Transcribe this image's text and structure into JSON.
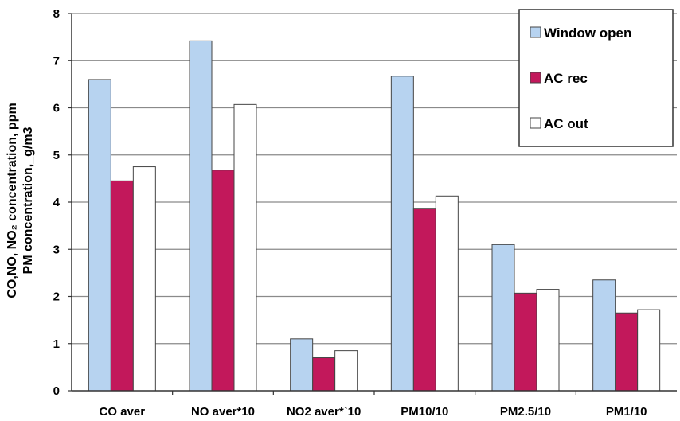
{
  "chart_data": {
    "type": "bar",
    "categories": [
      "CO aver",
      "NO aver*10",
      "NO2 aver*`10",
      "PM10/10",
      "PM2.5/10",
      "PM1/10"
    ],
    "series": [
      {
        "name": "Window open",
        "color": "#b7d3f0",
        "values": [
          6.6,
          7.42,
          1.1,
          6.67,
          3.1,
          2.35
        ]
      },
      {
        "name": "AC rec",
        "color": "#c2185b",
        "values": [
          4.45,
          4.68,
          0.7,
          3.87,
          2.07,
          1.65
        ]
      },
      {
        "name": "AC out",
        "color": "#ffffff",
        "values": [
          4.75,
          6.07,
          0.85,
          4.13,
          2.15,
          1.72
        ]
      }
    ],
    "ylabel_line1": "CO,NO, NO₂ concentration, ppm",
    "ylabel_line2": "PM concentration,_g/m3",
    "yticks": [
      "0",
      "1",
      "2",
      "3",
      "4",
      "5",
      "6",
      "7",
      "8"
    ],
    "ylim": [
      0,
      8
    ],
    "grid": true,
    "legend_position": "top-right"
  }
}
